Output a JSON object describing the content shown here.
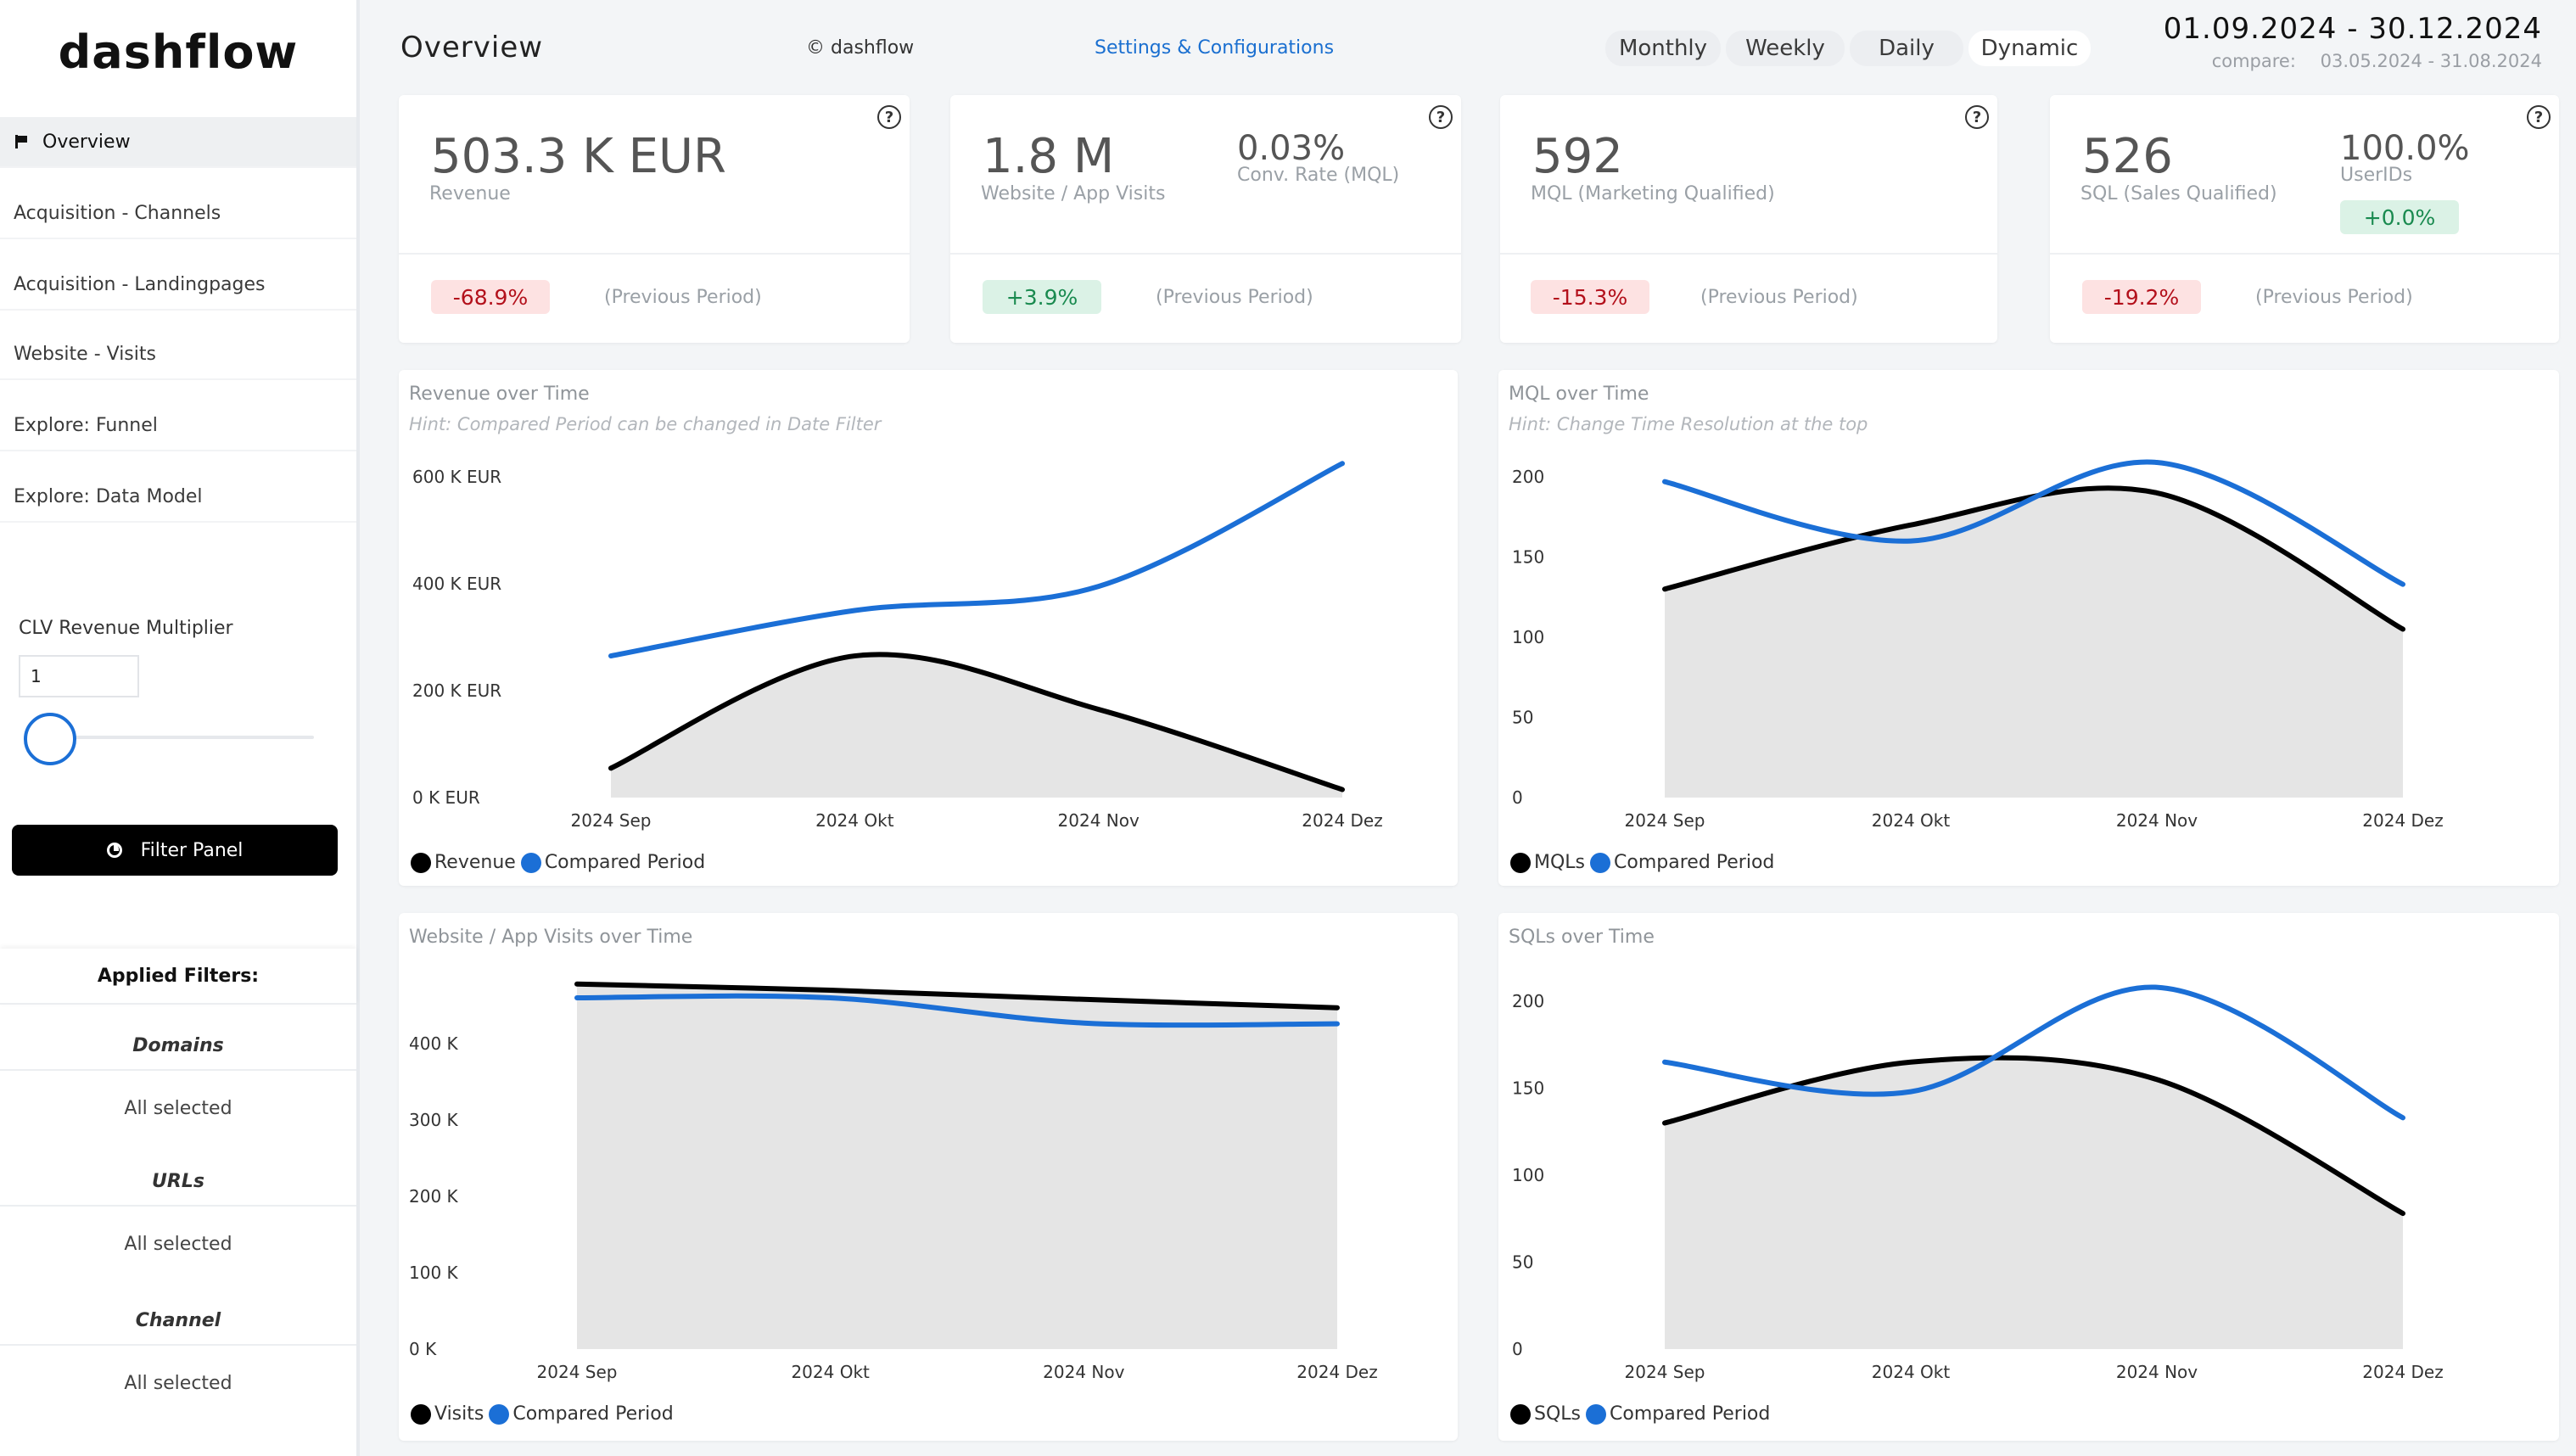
{
  "app": {
    "logo": "dashflow"
  },
  "sidebar": {
    "nav": [
      {
        "label": "Overview",
        "active": true
      },
      {
        "label": "Acquisition - Channels"
      },
      {
        "label": "Acquisition - Landingpages"
      },
      {
        "label": "Website - Visits"
      },
      {
        "label": "Explore: Funnel"
      },
      {
        "label": "Explore: Data Model"
      }
    ],
    "clv_label": "CLV Revenue Multiplier",
    "clv_value": "1",
    "filter_button": "Filter Panel",
    "applied_title": "Applied Filters:",
    "filters": [
      {
        "name": "Domains",
        "value": "All selected"
      },
      {
        "name": "URLs",
        "value": "All selected"
      },
      {
        "name": "Channel",
        "value": "All selected"
      }
    ]
  },
  "header": {
    "title": "Overview",
    "brand": "© dashflow",
    "settings": "Settings & Configurations",
    "tabs": [
      "Monthly",
      "Weekly",
      "Daily",
      "Dynamic"
    ],
    "selected_tab": "Dynamic",
    "date_range": "01.09.2024 - 30.12.2024",
    "compare_label": "compare:",
    "compare_range": "03.05.2024 - 31.08.2024"
  },
  "kpis": [
    {
      "value": "503.3 K EUR",
      "label": "Revenue",
      "delta": "-68.9%",
      "delta_type": "neg",
      "prev": "(Previous Period)"
    },
    {
      "value": "1.8 M",
      "label": "Website / App Visits",
      "value2": "0.03%",
      "label2": "Conv. Rate (MQL)",
      "delta": "+3.9%",
      "delta_type": "pos",
      "prev": "(Previous Period)"
    },
    {
      "value": "592",
      "label": "MQL (Marketing Qualified)",
      "delta": "-15.3%",
      "delta_type": "neg",
      "prev": "(Previous Period)"
    },
    {
      "value": "526",
      "label": "SQL (Sales Qualified)",
      "value2": "100.0%",
      "label2": "UserIDs",
      "badge2": "+0.0%",
      "delta": "-19.2%",
      "delta_type": "neg",
      "prev": "(Previous Period)"
    }
  ],
  "colors": {
    "current": "#000000",
    "compared": "#1b6fd6",
    "area": "#e5e5e5",
    "neg_bg": "#fde2e2",
    "pos_bg": "#dbf2e6"
  },
  "chart_data": [
    {
      "type": "area",
      "title": "Revenue over Time",
      "hint": "Hint: Compared Period can be changed in Date Filter",
      "categories": [
        "2024 Sep",
        "2024 Okt",
        "2024 Nov",
        "2024 Dez"
      ],
      "y_ticks": [
        "0 K EUR",
        "200 K EUR",
        "400 K EUR",
        "600 K EUR"
      ],
      "ylim": [
        0,
        600
      ],
      "series": [
        {
          "name": "Revenue",
          "values": [
            55,
            265,
            165,
            15
          ]
        },
        {
          "name": "Compared Period",
          "values": [
            265,
            350,
            395,
            625
          ]
        }
      ]
    },
    {
      "type": "area",
      "title": "MQL over Time",
      "hint": "Hint: Change Time Resolution at the top",
      "categories": [
        "2024 Sep",
        "2024 Okt",
        "2024 Nov",
        "2024 Dez"
      ],
      "y_ticks": [
        "0",
        "50",
        "100",
        "150",
        "200"
      ],
      "ylim": [
        0,
        200
      ],
      "series": [
        {
          "name": "MQLs",
          "values": [
            130,
            170,
            190,
            105
          ]
        },
        {
          "name": "Compared Period",
          "values": [
            197,
            160,
            209,
            133
          ]
        }
      ]
    },
    {
      "type": "area",
      "title": "Website / App Visits over Time",
      "categories": [
        "2024 Sep",
        "2024 Okt",
        "2024 Nov",
        "2024 Dez"
      ],
      "y_ticks": [
        "0 K",
        "100 K",
        "200 K",
        "300 K",
        "400 K"
      ],
      "ylim": [
        0,
        400
      ],
      "series": [
        {
          "name": "Visits",
          "values": [
            478,
            470,
            458,
            447
          ]
        },
        {
          "name": "Compared Period",
          "values": [
            460,
            460,
            427,
            426
          ]
        }
      ]
    },
    {
      "type": "area",
      "title": "SQLs over Time",
      "categories": [
        "2024 Sep",
        "2024 Okt",
        "2024 Nov",
        "2024 Dez"
      ],
      "y_ticks": [
        "0",
        "50",
        "100",
        "150",
        "200"
      ],
      "ylim": [
        0,
        200
      ],
      "series": [
        {
          "name": "SQLs",
          "values": [
            130,
            165,
            155,
            78
          ]
        },
        {
          "name": "Compared Period",
          "values": [
            165,
            148,
            208,
            133
          ]
        }
      ]
    }
  ]
}
